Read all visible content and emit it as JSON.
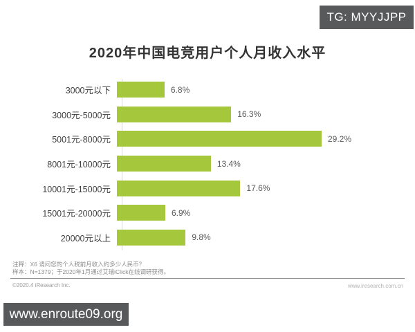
{
  "watermarks": {
    "tg_badge": "TG: MYYJJPP",
    "site_badge": "www.enroute09.org"
  },
  "chart_data": {
    "type": "bar",
    "orientation": "horizontal",
    "title": "2020年中国电竞用户个人月收入水平",
    "categories": [
      "3000元以下",
      "3000元-5000元",
      "5001元-8000元",
      "8001元-10000元",
      "10001元-15000元",
      "15001元-20000元",
      "20000元以上"
    ],
    "values": [
      6.8,
      16.3,
      29.2,
      13.4,
      17.6,
      6.9,
      9.8
    ],
    "value_labels": [
      "6.8%",
      "16.3%",
      "29.2%",
      "13.4%",
      "17.6%",
      "6.9%",
      "9.8%"
    ],
    "xlabel": "",
    "ylabel": "",
    "xlim": [
      0,
      30
    ],
    "grid": false,
    "legend": false,
    "bar_color": "#a5c73c",
    "unit": "%"
  },
  "footer": {
    "note_line1": "注释：X6 请问您的个人税前月收入约多少人民币？",
    "note_line2": "样本：N=1379；于2020年1月通过艾瑞iClick在线调研获得。",
    "copyright": "©2020.4 iResearch Inc.",
    "website": "www.iresearch.com.cn"
  }
}
